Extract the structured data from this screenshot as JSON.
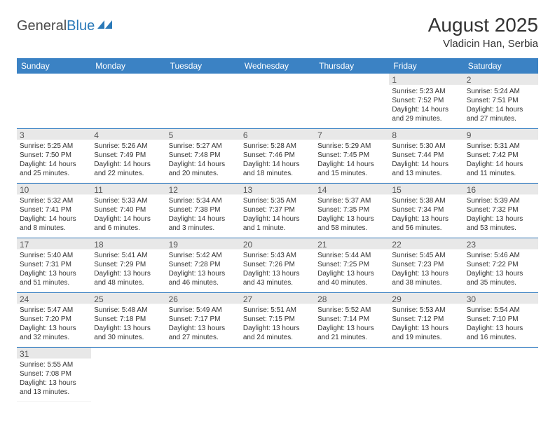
{
  "logo": {
    "text1": "General",
    "text2": "Blue"
  },
  "title": "August 2025",
  "location": "Vladicin Han, Serbia",
  "header_color": "#3b82c4",
  "daynum_bg": "#e8e8e8",
  "divider_color": "#3b82c4",
  "day_headers": [
    "Sunday",
    "Monday",
    "Tuesday",
    "Wednesday",
    "Thursday",
    "Friday",
    "Saturday"
  ],
  "weeks": [
    [
      null,
      null,
      null,
      null,
      null,
      {
        "n": "1",
        "sr": "Sunrise: 5:23 AM",
        "ss": "Sunset: 7:52 PM",
        "d1": "Daylight: 14 hours",
        "d2": "and 29 minutes."
      },
      {
        "n": "2",
        "sr": "Sunrise: 5:24 AM",
        "ss": "Sunset: 7:51 PM",
        "d1": "Daylight: 14 hours",
        "d2": "and 27 minutes."
      }
    ],
    [
      {
        "n": "3",
        "sr": "Sunrise: 5:25 AM",
        "ss": "Sunset: 7:50 PM",
        "d1": "Daylight: 14 hours",
        "d2": "and 25 minutes."
      },
      {
        "n": "4",
        "sr": "Sunrise: 5:26 AM",
        "ss": "Sunset: 7:49 PM",
        "d1": "Daylight: 14 hours",
        "d2": "and 22 minutes."
      },
      {
        "n": "5",
        "sr": "Sunrise: 5:27 AM",
        "ss": "Sunset: 7:48 PM",
        "d1": "Daylight: 14 hours",
        "d2": "and 20 minutes."
      },
      {
        "n": "6",
        "sr": "Sunrise: 5:28 AM",
        "ss": "Sunset: 7:46 PM",
        "d1": "Daylight: 14 hours",
        "d2": "and 18 minutes."
      },
      {
        "n": "7",
        "sr": "Sunrise: 5:29 AM",
        "ss": "Sunset: 7:45 PM",
        "d1": "Daylight: 14 hours",
        "d2": "and 15 minutes."
      },
      {
        "n": "8",
        "sr": "Sunrise: 5:30 AM",
        "ss": "Sunset: 7:44 PM",
        "d1": "Daylight: 14 hours",
        "d2": "and 13 minutes."
      },
      {
        "n": "9",
        "sr": "Sunrise: 5:31 AM",
        "ss": "Sunset: 7:42 PM",
        "d1": "Daylight: 14 hours",
        "d2": "and 11 minutes."
      }
    ],
    [
      {
        "n": "10",
        "sr": "Sunrise: 5:32 AM",
        "ss": "Sunset: 7:41 PM",
        "d1": "Daylight: 14 hours",
        "d2": "and 8 minutes."
      },
      {
        "n": "11",
        "sr": "Sunrise: 5:33 AM",
        "ss": "Sunset: 7:40 PM",
        "d1": "Daylight: 14 hours",
        "d2": "and 6 minutes."
      },
      {
        "n": "12",
        "sr": "Sunrise: 5:34 AM",
        "ss": "Sunset: 7:38 PM",
        "d1": "Daylight: 14 hours",
        "d2": "and 3 minutes."
      },
      {
        "n": "13",
        "sr": "Sunrise: 5:35 AM",
        "ss": "Sunset: 7:37 PM",
        "d1": "Daylight: 14 hours",
        "d2": "and 1 minute."
      },
      {
        "n": "14",
        "sr": "Sunrise: 5:37 AM",
        "ss": "Sunset: 7:35 PM",
        "d1": "Daylight: 13 hours",
        "d2": "and 58 minutes."
      },
      {
        "n": "15",
        "sr": "Sunrise: 5:38 AM",
        "ss": "Sunset: 7:34 PM",
        "d1": "Daylight: 13 hours",
        "d2": "and 56 minutes."
      },
      {
        "n": "16",
        "sr": "Sunrise: 5:39 AM",
        "ss": "Sunset: 7:32 PM",
        "d1": "Daylight: 13 hours",
        "d2": "and 53 minutes."
      }
    ],
    [
      {
        "n": "17",
        "sr": "Sunrise: 5:40 AM",
        "ss": "Sunset: 7:31 PM",
        "d1": "Daylight: 13 hours",
        "d2": "and 51 minutes."
      },
      {
        "n": "18",
        "sr": "Sunrise: 5:41 AM",
        "ss": "Sunset: 7:29 PM",
        "d1": "Daylight: 13 hours",
        "d2": "and 48 minutes."
      },
      {
        "n": "19",
        "sr": "Sunrise: 5:42 AM",
        "ss": "Sunset: 7:28 PM",
        "d1": "Daylight: 13 hours",
        "d2": "and 46 minutes."
      },
      {
        "n": "20",
        "sr": "Sunrise: 5:43 AM",
        "ss": "Sunset: 7:26 PM",
        "d1": "Daylight: 13 hours",
        "d2": "and 43 minutes."
      },
      {
        "n": "21",
        "sr": "Sunrise: 5:44 AM",
        "ss": "Sunset: 7:25 PM",
        "d1": "Daylight: 13 hours",
        "d2": "and 40 minutes."
      },
      {
        "n": "22",
        "sr": "Sunrise: 5:45 AM",
        "ss": "Sunset: 7:23 PM",
        "d1": "Daylight: 13 hours",
        "d2": "and 38 minutes."
      },
      {
        "n": "23",
        "sr": "Sunrise: 5:46 AM",
        "ss": "Sunset: 7:22 PM",
        "d1": "Daylight: 13 hours",
        "d2": "and 35 minutes."
      }
    ],
    [
      {
        "n": "24",
        "sr": "Sunrise: 5:47 AM",
        "ss": "Sunset: 7:20 PM",
        "d1": "Daylight: 13 hours",
        "d2": "and 32 minutes."
      },
      {
        "n": "25",
        "sr": "Sunrise: 5:48 AM",
        "ss": "Sunset: 7:18 PM",
        "d1": "Daylight: 13 hours",
        "d2": "and 30 minutes."
      },
      {
        "n": "26",
        "sr": "Sunrise: 5:49 AM",
        "ss": "Sunset: 7:17 PM",
        "d1": "Daylight: 13 hours",
        "d2": "and 27 minutes."
      },
      {
        "n": "27",
        "sr": "Sunrise: 5:51 AM",
        "ss": "Sunset: 7:15 PM",
        "d1": "Daylight: 13 hours",
        "d2": "and 24 minutes."
      },
      {
        "n": "28",
        "sr": "Sunrise: 5:52 AM",
        "ss": "Sunset: 7:14 PM",
        "d1": "Daylight: 13 hours",
        "d2": "and 21 minutes."
      },
      {
        "n": "29",
        "sr": "Sunrise: 5:53 AM",
        "ss": "Sunset: 7:12 PM",
        "d1": "Daylight: 13 hours",
        "d2": "and 19 minutes."
      },
      {
        "n": "30",
        "sr": "Sunrise: 5:54 AM",
        "ss": "Sunset: 7:10 PM",
        "d1": "Daylight: 13 hours",
        "d2": "and 16 minutes."
      }
    ],
    [
      {
        "n": "31",
        "sr": "Sunrise: 5:55 AM",
        "ss": "Sunset: 7:08 PM",
        "d1": "Daylight: 13 hours",
        "d2": "and 13 minutes."
      },
      null,
      null,
      null,
      null,
      null,
      null
    ]
  ]
}
